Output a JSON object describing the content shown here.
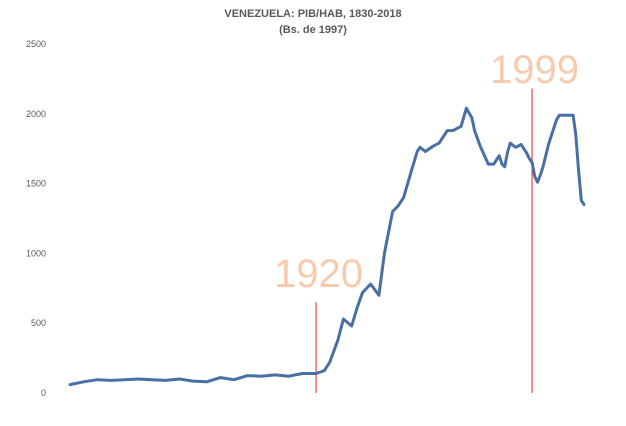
{
  "chart_data": {
    "type": "line",
    "title": "VENEZUELA: PIB/HAB, 1830-2018",
    "subtitle": "(Bs. de 1997)",
    "xlabel": "",
    "ylabel": "",
    "xlim": [
      1830,
      2018
    ],
    "ylim": [
      0,
      2500
    ],
    "yticks": [
      "0",
      "500",
      "1000",
      "1500",
      "2000",
      "2500"
    ],
    "grid": false,
    "series_color": "#4a6fa5",
    "marker_color": "#e02020",
    "marker_label_color": "#f8cbad",
    "markers": [
      {
        "year": 1920,
        "label": "1920",
        "line_top": 650
      },
      {
        "year": 1999,
        "label": "1999",
        "line_top": 2180
      }
    ],
    "series": [
      {
        "x": [
          1830,
          1835,
          1840,
          1845,
          1850,
          1855,
          1860,
          1865,
          1870,
          1875,
          1880,
          1885,
          1890,
          1895,
          1900,
          1905,
          1910,
          1915,
          1920,
          1923,
          1925,
          1928,
          1930,
          1933,
          1935,
          1937,
          1940,
          1943,
          1945,
          1948,
          1950,
          1952,
          1955,
          1957,
          1958,
          1960,
          1963,
          1965,
          1968,
          1970,
          1973,
          1975,
          1977,
          1978,
          1980,
          1983,
          1985,
          1987,
          1988,
          1989,
          1990,
          1991,
          1993,
          1995,
          1997,
          1998,
          1999,
          2000,
          2001,
          2002,
          2003,
          2005,
          2007,
          2008,
          2009,
          2010,
          2011,
          2012,
          2013,
          2014,
          2015,
          2016,
          2017,
          2018
        ],
        "values": [
          60,
          80,
          95,
          90,
          95,
          100,
          95,
          90,
          100,
          85,
          80,
          110,
          95,
          125,
          120,
          130,
          120,
          140,
          140,
          160,
          220,
          380,
          530,
          480,
          610,
          720,
          780,
          700,
          1000,
          1300,
          1340,
          1400,
          1600,
          1730,
          1760,
          1730,
          1770,
          1790,
          1880,
          1880,
          1910,
          2040,
          1970,
          1880,
          1770,
          1640,
          1640,
          1700,
          1640,
          1620,
          1720,
          1790,
          1760,
          1780,
          1720,
          1680,
          1650,
          1550,
          1510,
          1560,
          1620,
          1780,
          1900,
          1960,
          1990,
          1990,
          1990,
          1990,
          1990,
          1990,
          1850,
          1600,
          1380,
          1350
        ]
      }
    ]
  }
}
